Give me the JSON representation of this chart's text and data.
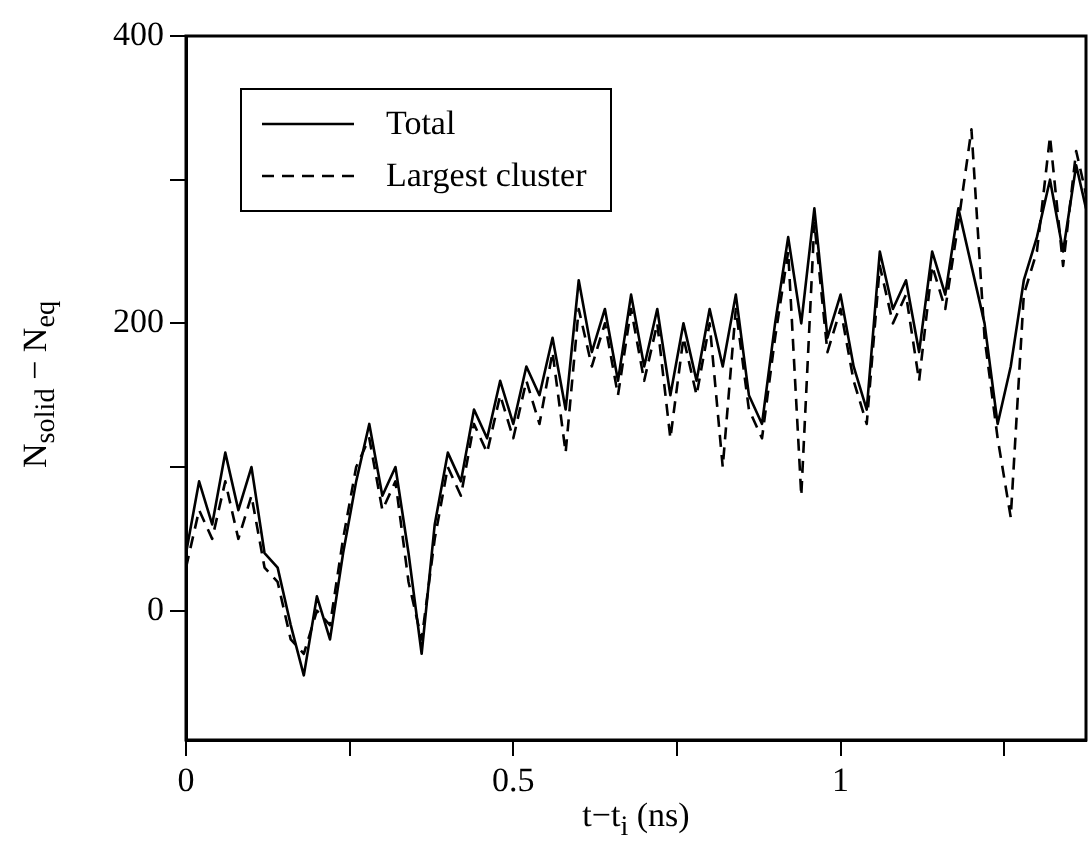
{
  "chart_data": {
    "type": "line",
    "xlabel": "t−t$_{i}$ (ns)",
    "ylabel": "N$_{solid}$ − N$_{eq}$",
    "x": [
      0,
      0.02,
      0.04,
      0.06,
      0.08,
      0.1,
      0.12,
      0.14,
      0.16,
      0.18,
      0.2,
      0.22,
      0.24,
      0.26,
      0.28,
      0.3,
      0.32,
      0.34,
      0.36,
      0.38,
      0.4,
      0.42,
      0.44,
      0.46,
      0.48,
      0.5,
      0.52,
      0.54,
      0.56,
      0.58,
      0.6,
      0.62,
      0.64,
      0.66,
      0.68,
      0.7,
      0.72,
      0.74,
      0.76,
      0.78,
      0.8,
      0.82,
      0.84,
      0.86,
      0.88,
      0.9,
      0.92,
      0.94,
      0.96,
      0.98,
      1,
      1.02,
      1.04,
      1.06,
      1.08,
      1.1,
      1.12,
      1.14,
      1.16,
      1.18,
      1.2,
      1.22,
      1.24,
      1.26,
      1.28,
      1.3,
      1.32,
      1.34,
      1.36,
      1.375
    ],
    "series": [
      {
        "name": "Total",
        "color": "#000000",
        "line_style": "solid",
        "values": [
          40,
          90,
          60,
          110,
          70,
          100,
          40,
          30,
          -10,
          -45,
          10,
          -20,
          40,
          90,
          130,
          80,
          100,
          40,
          -30,
          60,
          110,
          90,
          140,
          120,
          160,
          130,
          170,
          150,
          190,
          140,
          230,
          180,
          210,
          160,
          220,
          170,
          210,
          150,
          200,
          160,
          210,
          170,
          220,
          150,
          130,
          200,
          260,
          200,
          280,
          190,
          220,
          170,
          140,
          250,
          210,
          230,
          180,
          250,
          220,
          280,
          240,
          200,
          130,
          170,
          230,
          260,
          300,
          250,
          310,
          280
        ]
      },
      {
        "name": "Largest cluster",
        "color": "#000000",
        "line_style": "dashed",
        "values": [
          30,
          70,
          50,
          90,
          50,
          80,
          30,
          20,
          -20,
          -30,
          0,
          -10,
          50,
          100,
          120,
          70,
          90,
          20,
          -20,
          50,
          100,
          80,
          130,
          110,
          150,
          120,
          160,
          130,
          180,
          110,
          210,
          170,
          200,
          150,
          210,
          160,
          200,
          120,
          190,
          150,
          200,
          100,
          210,
          140,
          120,
          190,
          250,
          80,
          270,
          180,
          210,
          160,
          130,
          240,
          200,
          220,
          160,
          240,
          210,
          270,
          335,
          190,
          120,
          65,
          220,
          250,
          330,
          240,
          320,
          290
        ]
      }
    ],
    "xlim": [
      0,
      1.375
    ],
    "xticks": [
      0,
      {
        "value": 0.25,
        "label": null
      },
      0.5,
      {
        "value": 0.75,
        "label": null
      },
      1,
      {
        "value": 1.25,
        "label": null
      }
    ],
    "ylim": [
      -90,
      400
    ],
    "yticks": [
      0,
      {
        "value": 100,
        "label": null
      },
      200,
      {
        "value": 300,
        "label": null
      },
      400
    ],
    "grid": false,
    "legend": "top left",
    "marker": "none"
  }
}
